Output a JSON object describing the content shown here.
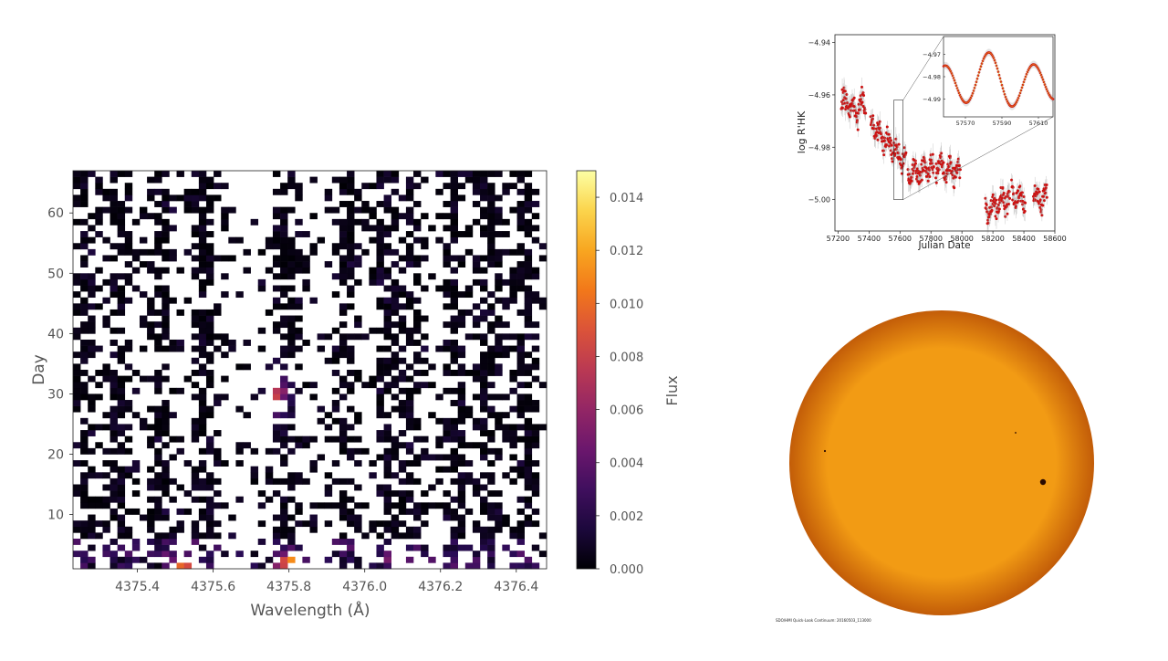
{
  "chart_data": [
    {
      "type": "heatmap",
      "title": "",
      "xlabel": "Wavelength (Å)",
      "ylabel": "Day",
      "colorbar_label": "Flux",
      "xlim": [
        4375.23,
        4376.48
      ],
      "ylim": [
        1,
        67
      ],
      "x_ticks": [
        4375.4,
        4375.6,
        4375.8,
        4376.0,
        4376.2,
        4376.4
      ],
      "y_ticks": [
        10,
        20,
        30,
        40,
        50,
        60
      ],
      "colorbar_ticks": [
        0.0,
        0.002,
        0.004,
        0.006,
        0.008,
        0.01,
        0.012,
        0.014
      ],
      "colorbar_range": [
        0.0,
        0.015
      ],
      "colormap": "inferno",
      "masked_color": "#ffffff",
      "x_bins": 64,
      "y_bins": 66,
      "hotspots": [
        {
          "x": 4375.8,
          "day": 2,
          "value": 0.013
        },
        {
          "x": 4375.77,
          "day": 30,
          "value": 0.007
        },
        {
          "x": 4375.52,
          "day": 2,
          "value": 0.01
        },
        {
          "x": 4376.08,
          "day": 3,
          "value": 0.008
        }
      ]
    },
    {
      "type": "scatter",
      "title": "",
      "xlabel": "Julian Date",
      "ylabel": "log R'HK",
      "xlim": [
        57180,
        58600
      ],
      "ylim": [
        -5.012,
        -4.937
      ],
      "x_ticks": [
        57200,
        57400,
        57600,
        57800,
        58000,
        58200,
        58400,
        58600
      ],
      "y_ticks": [
        -4.94,
        -4.96,
        -4.98,
        -5.0
      ],
      "point_color": "#cc1111",
      "error_color": "#9a9a9a",
      "segments": [
        {
          "x0": 57220,
          "x1": 57330,
          "y0": -4.962,
          "y1": -4.967
        },
        {
          "x0": 57330,
          "x1": 57380,
          "y0": -4.963,
          "y1": -4.965
        },
        {
          "x0": 57410,
          "x1": 57520,
          "y0": -4.97,
          "y1": -4.979
        },
        {
          "x0": 57520,
          "x1": 57640,
          "y0": -4.978,
          "y1": -4.986
        },
        {
          "x0": 57650,
          "x1": 57820,
          "y0": -4.99,
          "y1": -4.988
        },
        {
          "x0": 57830,
          "x1": 57990,
          "y0": -4.987,
          "y1": -4.99
        },
        {
          "x0": 58150,
          "x1": 58310,
          "y0": -5.004,
          "y1": -4.999
        },
        {
          "x0": 58320,
          "x1": 58410,
          "y0": -4.999,
          "y1": -5.0
        },
        {
          "x0": 58460,
          "x1": 58550,
          "y0": -4.999,
          "y1": -4.999
        }
      ],
      "inset": {
        "xlim": [
          57558,
          57618
        ],
        "ylim": [
          -4.998,
          -4.962
        ],
        "x_ticks": [
          57570,
          57590,
          57610
        ],
        "y_ticks": [
          -4.97,
          -4.98,
          -4.99
        ],
        "zoom_box_x": [
          57560,
          57620
        ],
        "zoom_box_y": [
          -5.0,
          -4.962
        ]
      }
    }
  ],
  "sun_image": {
    "disk_color": "#f29b14",
    "limb_color": "#c25c08",
    "spot_color": "#2a0a00",
    "caption": "SDO/HMI Quick-Look Continuum: 20160503_113000"
  }
}
